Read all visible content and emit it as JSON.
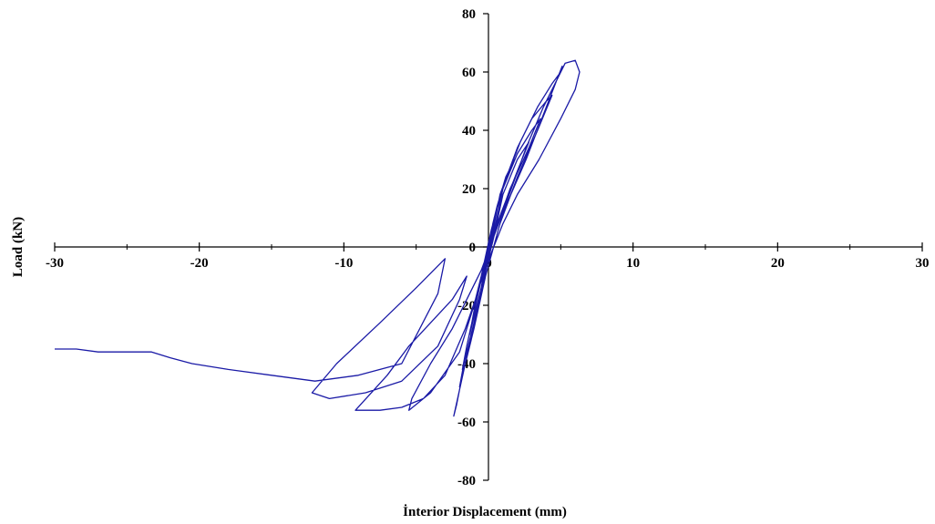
{
  "chart_data": {
    "type": "line",
    "title": "",
    "xlabel": "İnterior Displacement (mm)",
    "ylabel": "Load (kN)",
    "xlim": [
      -30,
      30
    ],
    "ylim": [
      -80,
      80
    ],
    "x_ticks": [
      -30,
      -20,
      -10,
      0,
      10,
      20,
      30
    ],
    "y_ticks": [
      -80,
      -60,
      -40,
      -20,
      0,
      20,
      40,
      60,
      80
    ],
    "x_tick_labels": [
      "-30",
      "-20",
      "-10",
      "0",
      "10",
      "20",
      "30"
    ],
    "y_tick_labels": [
      "-80",
      "-60",
      "-40",
      "-20",
      "0",
      "20",
      "40",
      "60",
      "80"
    ],
    "grid": false,
    "series_color": "#1a1aa6",
    "series": [
      {
        "x": [
          0,
          0.3,
          0.6,
          0.9,
          0.4,
          0,
          -0.3,
          -0.5,
          -0.2,
          0,
          0.6,
          1.2,
          1.8,
          1.0,
          0.2,
          -0.5,
          -1.0,
          -1.3,
          -0.6,
          0.3,
          1.0,
          2.0,
          2.8,
          2.0,
          0.9,
          0,
          -0.8,
          -1.5,
          -1.8,
          -1.0,
          0,
          1.0,
          2.0,
          3.0,
          3.6,
          2.8,
          1.5,
          0.5,
          -0.3,
          -1.0,
          -1.7,
          -2.0,
          -1.2,
          -0.2,
          0.8,
          2.0,
          3.0,
          4.0,
          4.4,
          3.4,
          2.0,
          0.8,
          -0.2,
          -1.0,
          -1.8,
          -2.2,
          -2.4,
          -1.6,
          -0.4,
          0.8,
          2.2,
          3.4,
          4.4,
          5.0,
          5.1,
          4.0,
          2.6,
          1.2,
          0.2,
          -0.5,
          -1.0,
          -2.0,
          -4.0,
          -5.5,
          -5.3,
          -4.0,
          -2.5,
          -1.5,
          -0.5,
          1.0,
          2.6,
          3.8,
          4.8,
          5.3,
          6.0,
          6.3,
          6.0,
          5.0,
          3.5,
          2.0,
          1.0,
          0.2,
          -0.4,
          -0.9,
          -1.6,
          -3.0,
          -4.5,
          -6.0,
          -7.5,
          -9.2,
          -7.0,
          -5.5,
          -4.0,
          -2.5,
          -1.5,
          -2.0,
          -3.5,
          -6.0,
          -8.5,
          -11.0,
          -12.2,
          -10.5,
          -7.5,
          -5.0,
          -3.0,
          -3.5,
          -6.0,
          -9.0,
          -12.0,
          -15.0,
          -18.0,
          -20.5,
          -22.0,
          -23.3,
          -25.0,
          -27.0,
          -28.5,
          -30.0
        ],
        "y": [
          0,
          8,
          14,
          18,
          10,
          0,
          -8,
          -14,
          -6,
          0,
          14,
          24,
          30,
          20,
          6,
          -10,
          -22,
          -30,
          -16,
          2,
          18,
          30,
          36,
          26,
          12,
          0,
          -18,
          -34,
          -42,
          -26,
          -4,
          20,
          32,
          40,
          44,
          34,
          20,
          6,
          -10,
          -26,
          -40,
          -48,
          -32,
          -8,
          18,
          34,
          44,
          50,
          52,
          40,
          24,
          8,
          -10,
          -28,
          -44,
          -54,
          -58,
          -40,
          -12,
          18,
          36,
          48,
          56,
          60,
          62,
          48,
          30,
          14,
          2,
          -10,
          -20,
          -36,
          -50,
          -56,
          -52,
          -40,
          -28,
          -18,
          -8,
          12,
          34,
          48,
          58,
          63,
          64,
          60,
          54,
          44,
          30,
          18,
          8,
          -2,
          -10,
          -18,
          -28,
          -44,
          -52,
          -55,
          -56,
          -56,
          -44,
          -34,
          -26,
          -18,
          -10,
          -18,
          -34,
          -46,
          -50,
          -52,
          -50,
          -40,
          -26,
          -14,
          -4,
          -16,
          -40,
          -44,
          -46,
          -44,
          -42,
          -40,
          -38,
          -36,
          -36,
          -36,
          -35,
          -35
        ]
      }
    ]
  }
}
